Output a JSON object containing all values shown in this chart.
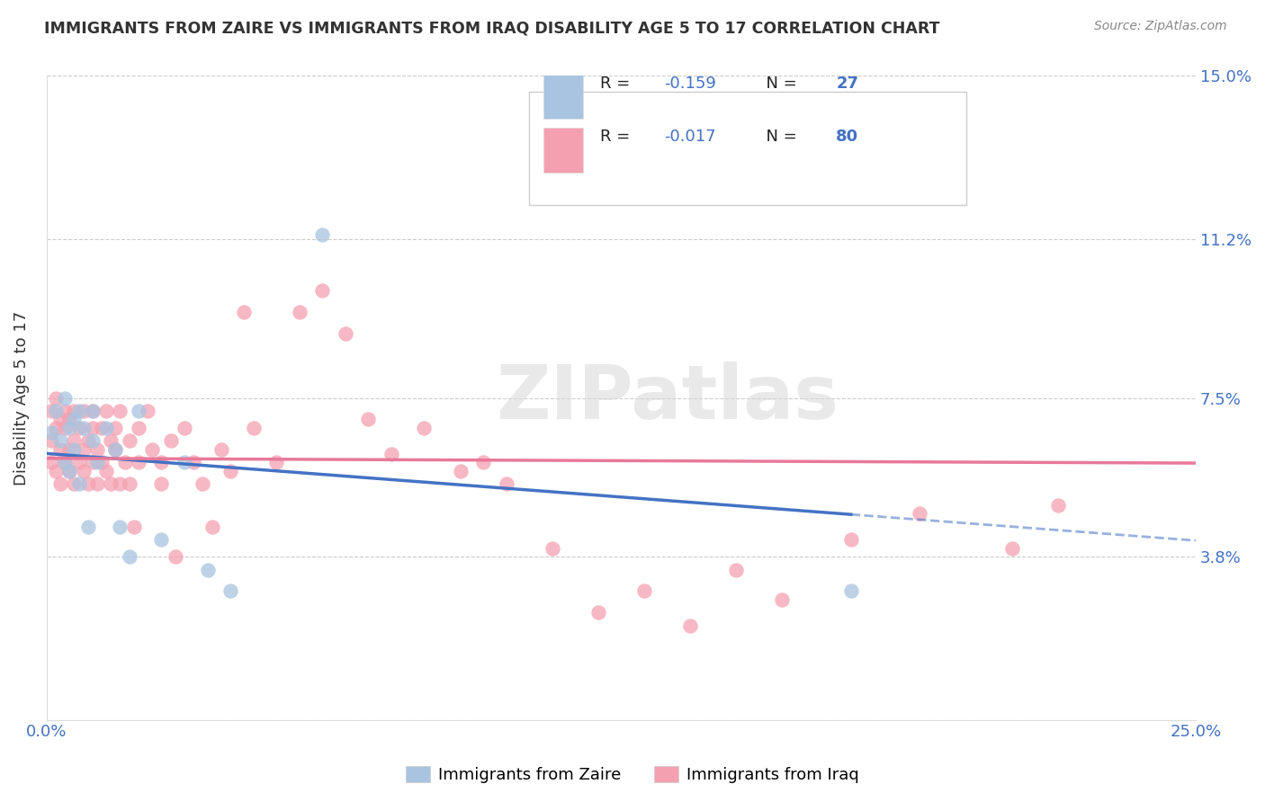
{
  "title": "IMMIGRANTS FROM ZAIRE VS IMMIGRANTS FROM IRAQ DISABILITY AGE 5 TO 17 CORRELATION CHART",
  "source": "Source: ZipAtlas.com",
  "ylabel": "Disability Age 5 to 17",
  "xlim": [
    0.0,
    0.25
  ],
  "ylim": [
    0.0,
    0.15
  ],
  "xtick_vals": [
    0.0,
    0.05,
    0.1,
    0.15,
    0.2,
    0.25
  ],
  "xticklabels": [
    "0.0%",
    "",
    "",
    "",
    "",
    "25.0%"
  ],
  "ytick_vals": [
    0.0,
    0.038,
    0.075,
    0.112,
    0.15
  ],
  "ytick_labels": [
    "",
    "3.8%",
    "7.5%",
    "11.2%",
    "15.0%"
  ],
  "zaire_color": "#a8c4e0",
  "iraq_color": "#f4a0b0",
  "zaire_line_color": "#4472c4",
  "iraq_line_color": "#e8799a",
  "label_color": "#4472c4",
  "r_value_color": "#4472c4",
  "n_value_color": "#4472c4",
  "text_color": "#333333",
  "zaire_R": -0.159,
  "zaire_N": 27,
  "iraq_R": -0.017,
  "iraq_N": 80,
  "watermark": "ZIPatlas",
  "zaire_x": [
    0.001,
    0.002,
    0.003,
    0.004,
    0.004,
    0.005,
    0.005,
    0.006,
    0.006,
    0.007,
    0.007,
    0.008,
    0.009,
    0.01,
    0.01,
    0.011,
    0.013,
    0.015,
    0.016,
    0.018,
    0.02,
    0.025,
    0.03,
    0.035,
    0.04,
    0.06,
    0.175
  ],
  "zaire_y": [
    0.067,
    0.072,
    0.065,
    0.06,
    0.075,
    0.068,
    0.058,
    0.07,
    0.063,
    0.072,
    0.055,
    0.068,
    0.045,
    0.065,
    0.072,
    0.06,
    0.068,
    0.063,
    0.045,
    0.038,
    0.072,
    0.042,
    0.06,
    0.035,
    0.03,
    0.113,
    0.03
  ],
  "iraq_x": [
    0.001,
    0.001,
    0.001,
    0.002,
    0.002,
    0.002,
    0.003,
    0.003,
    0.003,
    0.004,
    0.004,
    0.004,
    0.005,
    0.005,
    0.005,
    0.006,
    0.006,
    0.006,
    0.007,
    0.007,
    0.008,
    0.008,
    0.008,
    0.009,
    0.009,
    0.01,
    0.01,
    0.01,
    0.011,
    0.011,
    0.012,
    0.012,
    0.013,
    0.013,
    0.014,
    0.014,
    0.015,
    0.015,
    0.016,
    0.016,
    0.017,
    0.018,
    0.018,
    0.019,
    0.02,
    0.02,
    0.022,
    0.023,
    0.025,
    0.025,
    0.027,
    0.028,
    0.03,
    0.032,
    0.034,
    0.036,
    0.038,
    0.04,
    0.043,
    0.045,
    0.05,
    0.055,
    0.06,
    0.065,
    0.07,
    0.075,
    0.082,
    0.09,
    0.095,
    0.1,
    0.11,
    0.12,
    0.13,
    0.14,
    0.15,
    0.16,
    0.175,
    0.19,
    0.21,
    0.22
  ],
  "iraq_y": [
    0.065,
    0.06,
    0.072,
    0.068,
    0.058,
    0.075,
    0.063,
    0.055,
    0.07,
    0.068,
    0.06,
    0.072,
    0.063,
    0.058,
    0.07,
    0.065,
    0.055,
    0.072,
    0.06,
    0.068,
    0.063,
    0.058,
    0.072,
    0.055,
    0.065,
    0.068,
    0.06,
    0.072,
    0.063,
    0.055,
    0.068,
    0.06,
    0.072,
    0.058,
    0.065,
    0.055,
    0.068,
    0.063,
    0.055,
    0.072,
    0.06,
    0.065,
    0.055,
    0.045,
    0.068,
    0.06,
    0.072,
    0.063,
    0.06,
    0.055,
    0.065,
    0.038,
    0.068,
    0.06,
    0.055,
    0.045,
    0.063,
    0.058,
    0.095,
    0.068,
    0.06,
    0.095,
    0.1,
    0.09,
    0.07,
    0.062,
    0.068,
    0.058,
    0.06,
    0.055,
    0.04,
    0.025,
    0.03,
    0.022,
    0.035,
    0.028,
    0.042,
    0.048,
    0.04,
    0.05
  ]
}
